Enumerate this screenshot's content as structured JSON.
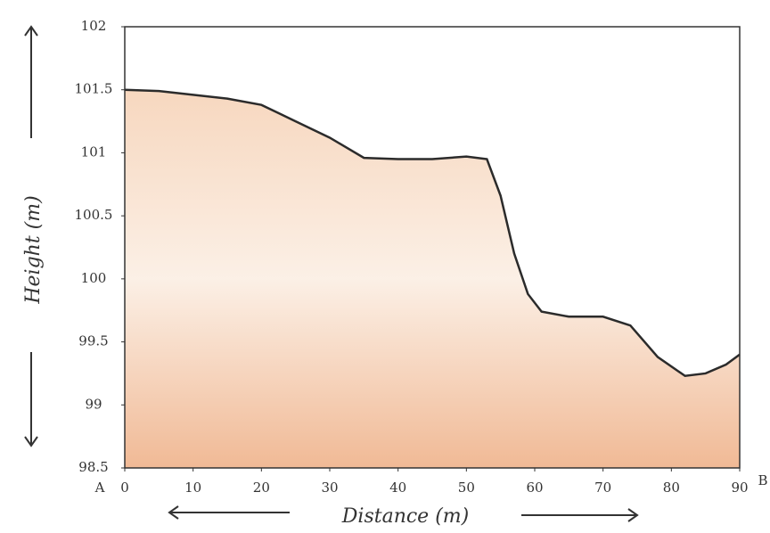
{
  "chart_data": {
    "type": "area",
    "x_label": "Distance (m)",
    "y_label": "Height (m)",
    "start_label": "A",
    "end_label": "B",
    "x": [
      0,
      5,
      15,
      20,
      25,
      30,
      35,
      40,
      45,
      50,
      53,
      55,
      57,
      59,
      61,
      65,
      70,
      74,
      78,
      82,
      85,
      88,
      90
    ],
    "values": [
      101.5,
      101.49,
      101.43,
      101.38,
      101.25,
      101.12,
      100.96,
      100.95,
      100.95,
      100.97,
      100.95,
      100.66,
      100.2,
      99.88,
      99.74,
      99.7,
      99.7,
      99.63,
      99.38,
      99.23,
      99.25,
      99.32,
      99.4
    ],
    "color": "#e9a77c",
    "line_color": "#2b2b2b",
    "xlim": [
      0,
      90
    ],
    "xticks": [
      0,
      10,
      20,
      30,
      40,
      50,
      60,
      70,
      80,
      90
    ],
    "ylim": [
      98.5,
      102
    ],
    "yticks": [
      98.5,
      99,
      99.5,
      100,
      100.5,
      101,
      101.5,
      102
    ]
  }
}
